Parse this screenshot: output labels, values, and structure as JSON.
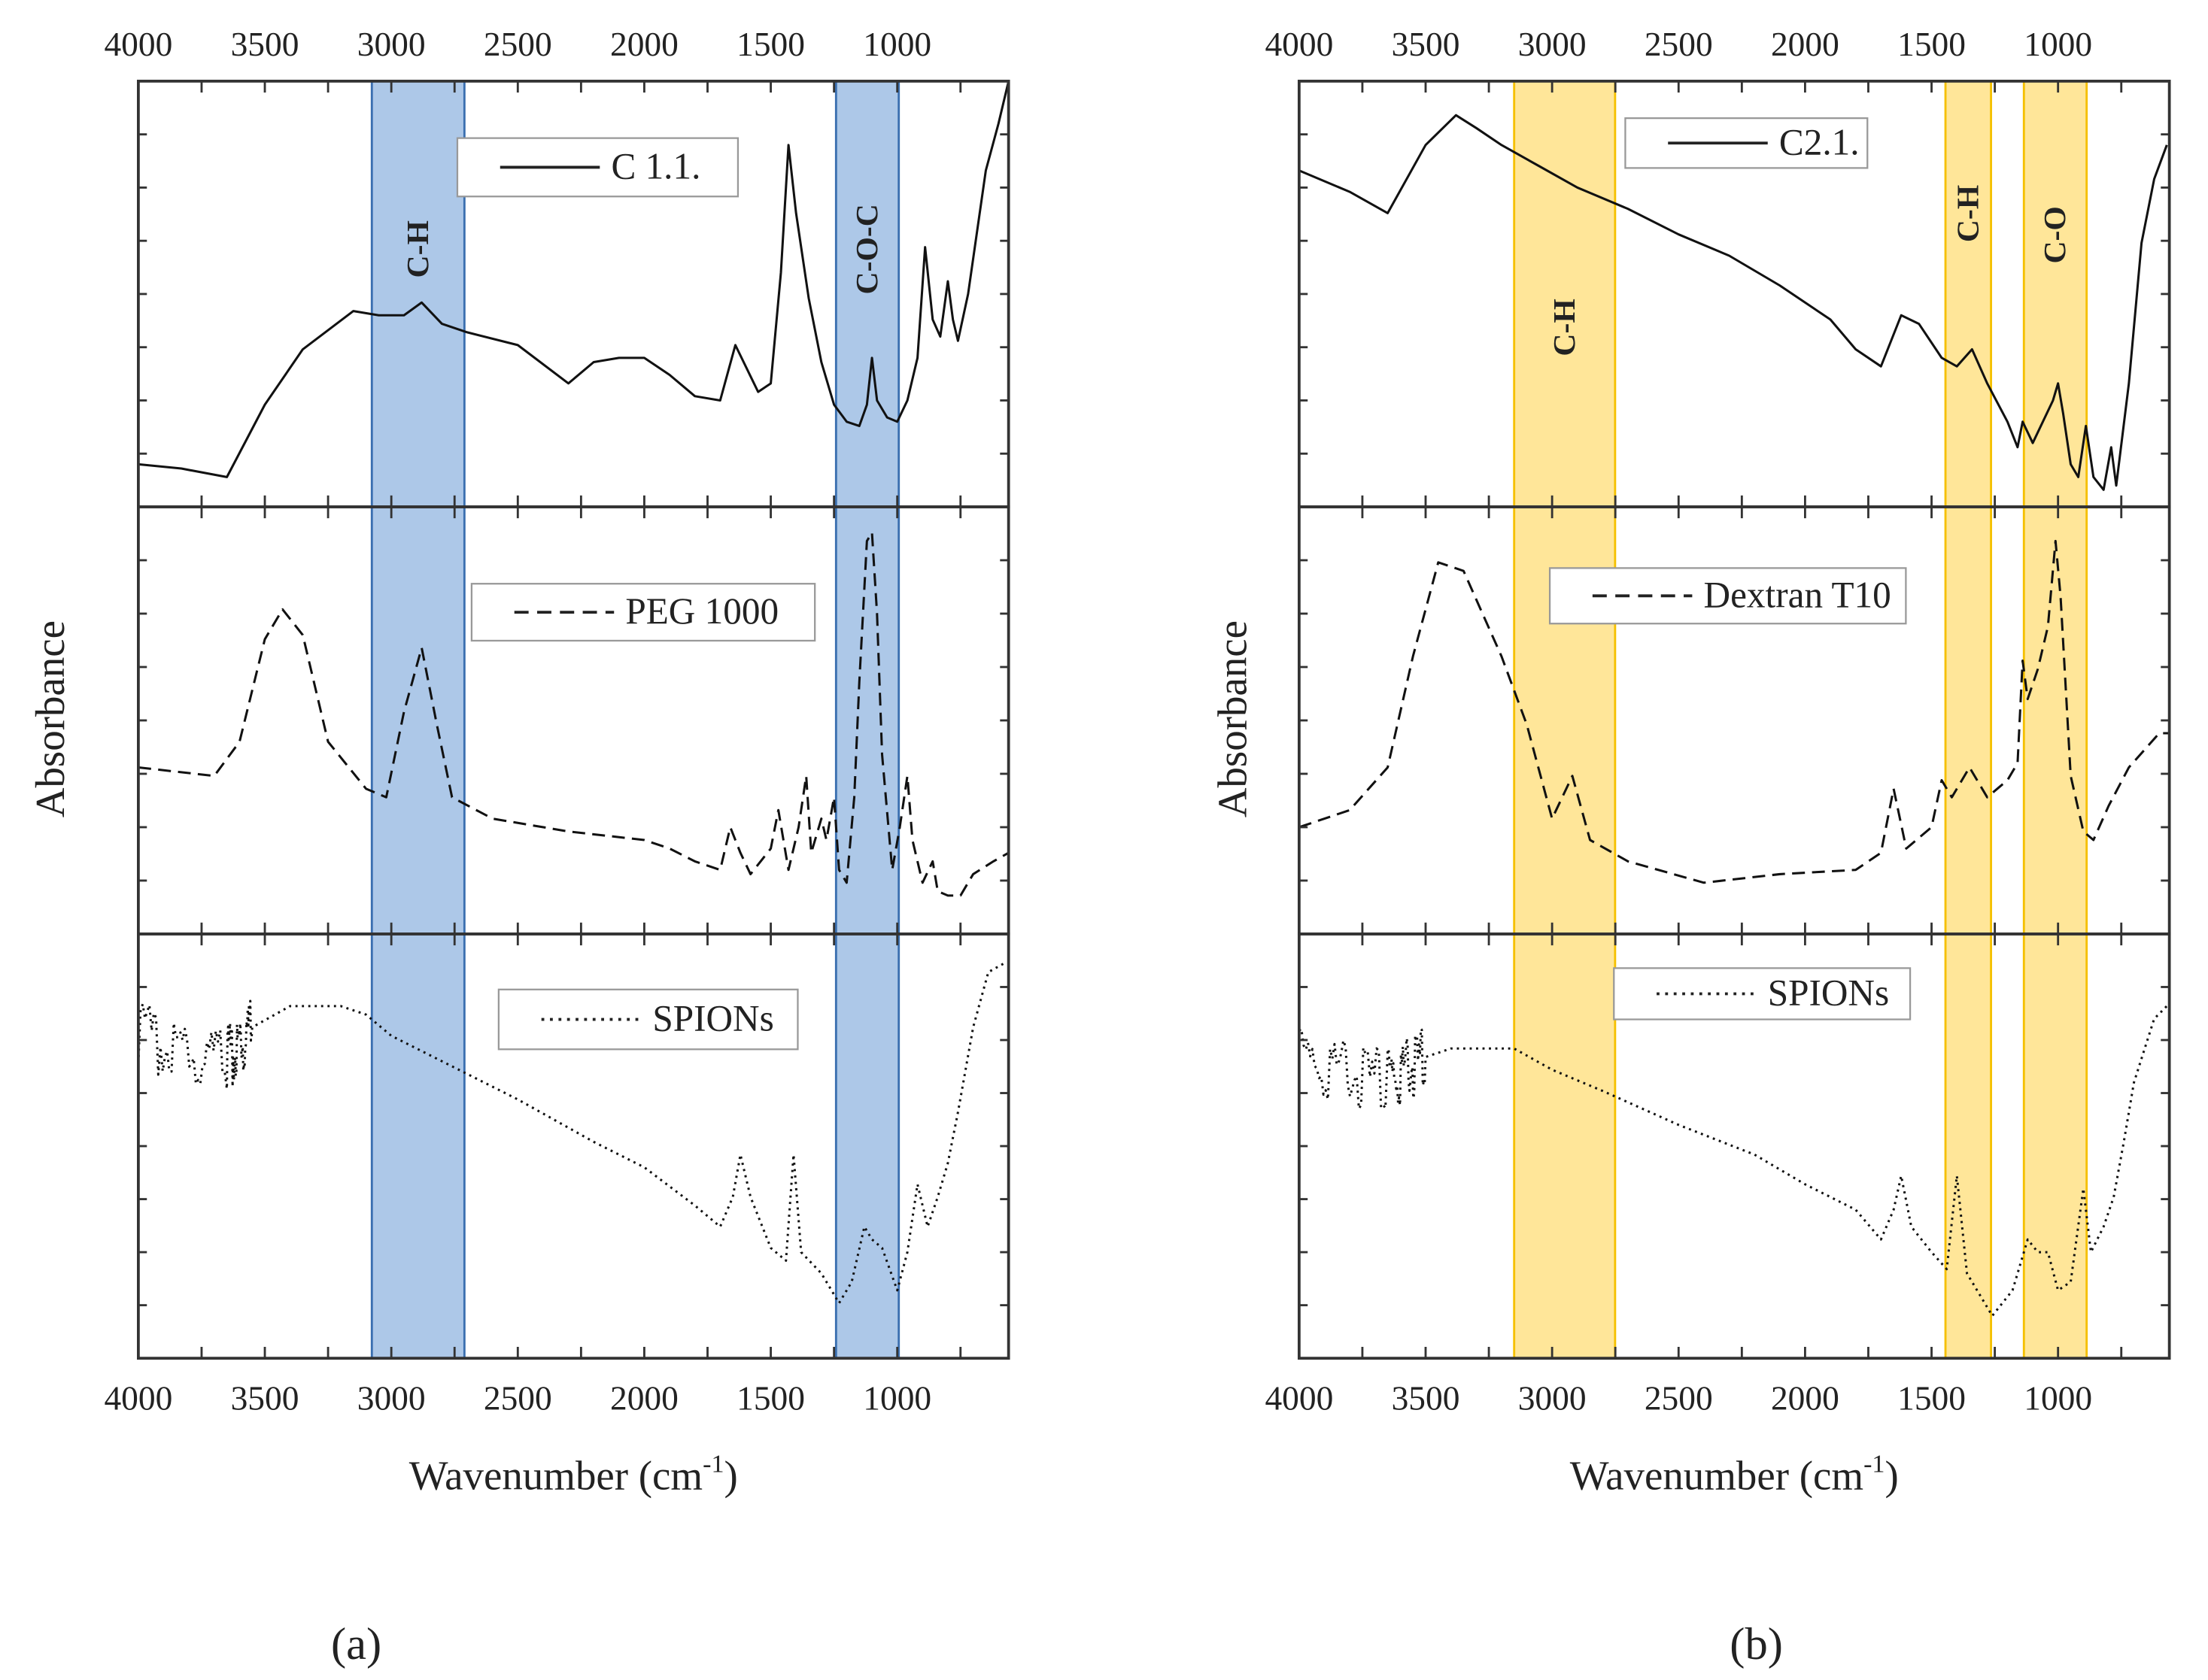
{
  "chart_data": [
    {
      "panel_label": "(a)",
      "type": "line",
      "xlabel": "Wavenumber (cm",
      "xlabel_sup": "-1",
      "xlabel_close": ")",
      "ylabel": "Absorbance",
      "xlim": [
        4000,
        560
      ],
      "ylim": [
        0,
        100
      ],
      "x_ticklabels": [
        "4000",
        "3500",
        "3000",
        "2500",
        "2000",
        "1500",
        "1000"
      ],
      "bands": [
        {
          "label": "C-H",
          "range": [
            3077,
            2711
          ],
          "fill": "#adc8e8",
          "stroke": "#3a6fb0"
        },
        {
          "label": "C-O-C",
          "range": [
            1242,
            994
          ],
          "fill": "#adc8e8",
          "stroke": "#3a6fb0"
        }
      ],
      "series": [
        {
          "name": "C 1.1.",
          "style": "solid",
          "x": [
            4000,
            3830,
            3650,
            3500,
            3350,
            3150,
            3050,
            2950,
            2880,
            2800,
            2700,
            2500,
            2300,
            2200,
            2100,
            2000,
            1900,
            1800,
            1700,
            1640,
            1550,
            1500,
            1460,
            1430,
            1400,
            1350,
            1300,
            1250,
            1200,
            1150,
            1120,
            1100,
            1080,
            1040,
            1000,
            960,
            920,
            890,
            860,
            830,
            800,
            780,
            760,
            720,
            650,
            600,
            560
          ],
          "y": [
            10,
            9,
            7,
            24,
            37,
            46,
            45,
            45,
            48,
            43,
            41,
            38,
            29,
            34,
            35,
            35,
            31,
            26,
            25,
            38,
            27,
            29,
            55,
            85,
            69,
            49,
            34,
            24,
            20,
            19,
            24,
            35,
            25,
            21,
            20,
            25,
            35,
            61,
            44,
            40,
            53,
            44,
            39,
            50,
            79,
            90,
            100
          ]
        },
        {
          "name": "PEG 1000",
          "style": "dashed",
          "x": [
            4000,
            3700,
            3600,
            3500,
            3430,
            3350,
            3250,
            3100,
            3020,
            2950,
            2880,
            2820,
            2760,
            2600,
            2300,
            2000,
            1900,
            1800,
            1700,
            1660,
            1620,
            1580,
            1500,
            1470,
            1430,
            1390,
            1360,
            1340,
            1300,
            1280,
            1250,
            1230,
            1200,
            1170,
            1150,
            1120,
            1100,
            1080,
            1060,
            1020,
            990,
            960,
            940,
            900,
            860,
            840,
            800,
            750,
            700,
            620,
            560
          ],
          "y": [
            39,
            37,
            45,
            69,
            76,
            70,
            45,
            34,
            32,
            52,
            67,
            49,
            32,
            27,
            24,
            22,
            20,
            17,
            15,
            25,
            19,
            14,
            20,
            29,
            15,
            25,
            37,
            19,
            27,
            22,
            32,
            15,
            12,
            32,
            59,
            92,
            94,
            75,
            42,
            15,
            25,
            37,
            22,
            12,
            17,
            10,
            9,
            9,
            14,
            17,
            19
          ]
        },
        {
          "name": "SPIONs",
          "style": "dotted",
          "noise_above": 3650,
          "x": [
            4000,
            3650,
            3550,
            3400,
            3200,
            3100,
            3000,
            2800,
            2500,
            2200,
            2000,
            1800,
            1700,
            1650,
            1620,
            1580,
            1500,
            1440,
            1410,
            1380,
            1300,
            1230,
            1180,
            1130,
            1100,
            1060,
            1000,
            960,
            920,
            880,
            840,
            800,
            760,
            700,
            640,
            580
          ],
          "y": [
            76,
            70,
            78,
            83,
            83,
            81,
            76,
            70,
            61,
            51,
            45,
            36,
            31,
            38,
            48,
            38,
            26,
            23,
            48,
            25,
            20,
            13,
            18,
            31,
            28,
            26,
            16,
            25,
            41,
            31,
            38,
            46,
            58,
            78,
            91,
            93
          ]
        }
      ]
    },
    {
      "panel_label": "(b)",
      "type": "line",
      "xlabel": "Wavenumber (cm",
      "xlabel_sup": "-1",
      "xlabel_close": ")",
      "ylabel": "Absorbance",
      "xlim": [
        4000,
        560
      ],
      "ylim": [
        0,
        100
      ],
      "x_ticklabels": [
        "4000",
        "3500",
        "3000",
        "2500",
        "2000",
        "1500",
        "1000"
      ],
      "bands": [
        {
          "label": "C-H",
          "range": [
            3150,
            2751
          ],
          "fill": "#ffe699",
          "stroke": "#f5c000"
        },
        {
          "label": "C-H",
          "range": [
            1445,
            1265
          ],
          "fill": "#ffe699",
          "stroke": "#f5c000"
        },
        {
          "label": "C-O",
          "range": [
            1135,
            887
          ],
          "fill": "#ffe699",
          "stroke": "#f5c000"
        }
      ],
      "series": [
        {
          "name": "C2.1.",
          "style": "solid",
          "x": [
            4000,
            3800,
            3650,
            3500,
            3380,
            3300,
            3200,
            3050,
            2900,
            2700,
            2500,
            2300,
            2100,
            1900,
            1800,
            1700,
            1620,
            1550,
            1460,
            1400,
            1340,
            1280,
            1200,
            1160,
            1140,
            1100,
            1060,
            1020,
            1000,
            980,
            950,
            920,
            890,
            860,
            820,
            790,
            770,
            720,
            670,
            620,
            570
          ],
          "y": [
            79,
            74,
            69,
            85,
            92,
            89,
            85,
            80,
            75,
            70,
            64,
            59,
            52,
            44,
            37,
            33,
            45,
            43,
            35,
            33,
            37,
            29,
            20,
            14,
            20,
            15,
            20,
            25,
            29,
            22,
            10,
            7,
            19,
            7,
            4,
            14,
            5,
            29,
            62,
            77,
            85
          ]
        },
        {
          "name": "Dextran T10",
          "style": "dashed",
          "x": [
            4000,
            3800,
            3650,
            3550,
            3450,
            3350,
            3200,
            3100,
            3000,
            2920,
            2850,
            2700,
            2400,
            2100,
            1800,
            1700,
            1650,
            1600,
            1500,
            1460,
            1420,
            1350,
            1280,
            1200,
            1160,
            1140,
            1120,
            1080,
            1040,
            1010,
            990,
            950,
            900,
            860,
            800,
            720,
            600,
            560
          ],
          "y": [
            25,
            29,
            39,
            65,
            87,
            85,
            65,
            49,
            27,
            37,
            22,
            17,
            12,
            14,
            15,
            19,
            34,
            20,
            25,
            36,
            32,
            39,
            32,
            36,
            40,
            64,
            55,
            62,
            72,
            92,
            79,
            37,
            24,
            22,
            30,
            39,
            47,
            47
          ]
        },
        {
          "name": "SPIONs",
          "style": "dotted",
          "noise_above": 3650,
          "x": [
            4000,
            3650,
            3500,
            3400,
            3150,
            3000,
            2800,
            2500,
            2200,
            2000,
            1800,
            1700,
            1650,
            1620,
            1580,
            1500,
            1440,
            1400,
            1360,
            1260,
            1180,
            1120,
            1080,
            1040,
            1000,
            950,
            900,
            870,
            820,
            780,
            740,
            700,
            620,
            570
          ],
          "y": [
            70,
            65,
            71,
            73,
            73,
            68,
            63,
            55,
            48,
            41,
            35,
            28,
            35,
            43,
            31,
            25,
            21,
            43,
            20,
            10,
            16,
            28,
            25,
            25,
            16,
            18,
            40,
            25,
            31,
            38,
            51,
            65,
            80,
            83
          ]
        }
      ]
    }
  ]
}
